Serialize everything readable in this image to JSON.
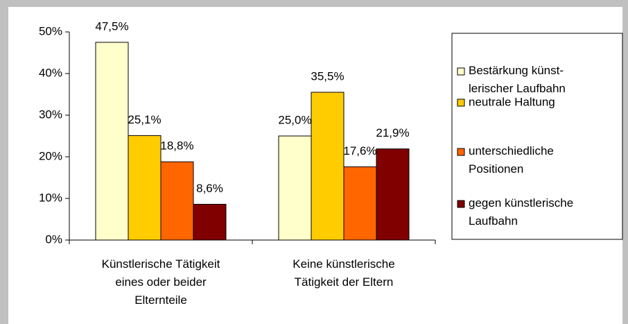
{
  "chart_data": {
    "type": "bar",
    "categories": [
      "Künstlerische Tätigkeit\neines oder beider\nElternteile",
      "Keine künstlerische\nTätigkeit der Eltern"
    ],
    "series": [
      {
        "name": "Bestärkung künst-\nlerischer Laufbahn",
        "color": "#ffffcc",
        "values": [
          47.5,
          25.0
        ],
        "value_labels": [
          "47,5%",
          "25,0%"
        ]
      },
      {
        "name": "neutrale Haltung",
        "color": "#ffcc00",
        "values": [
          25.1,
          35.5
        ],
        "value_labels": [
          "25,1%",
          "35,5%"
        ]
      },
      {
        "name": "unterschiedliche\nPositionen",
        "color": "#ff6600",
        "values": [
          18.8,
          17.6
        ],
        "value_labels": [
          "18,8%",
          "17,6%"
        ]
      },
      {
        "name": "gegen künstlerische\nLaufbahn",
        "color": "#800000",
        "values": [
          8.6,
          21.9
        ],
        "value_labels": [
          "8,6%",
          "21,9%"
        ]
      }
    ],
    "ylim": [
      0,
      50
    ],
    "yticks": [
      {
        "value": 0,
        "label": "0%"
      },
      {
        "value": 10,
        "label": "10%"
      },
      {
        "value": 20,
        "label": "20%"
      },
      {
        "value": 30,
        "label": "30%"
      },
      {
        "value": 40,
        "label": "40%"
      },
      {
        "value": 50,
        "label": "50%"
      }
    ],
    "grid": false,
    "legend": "right"
  }
}
